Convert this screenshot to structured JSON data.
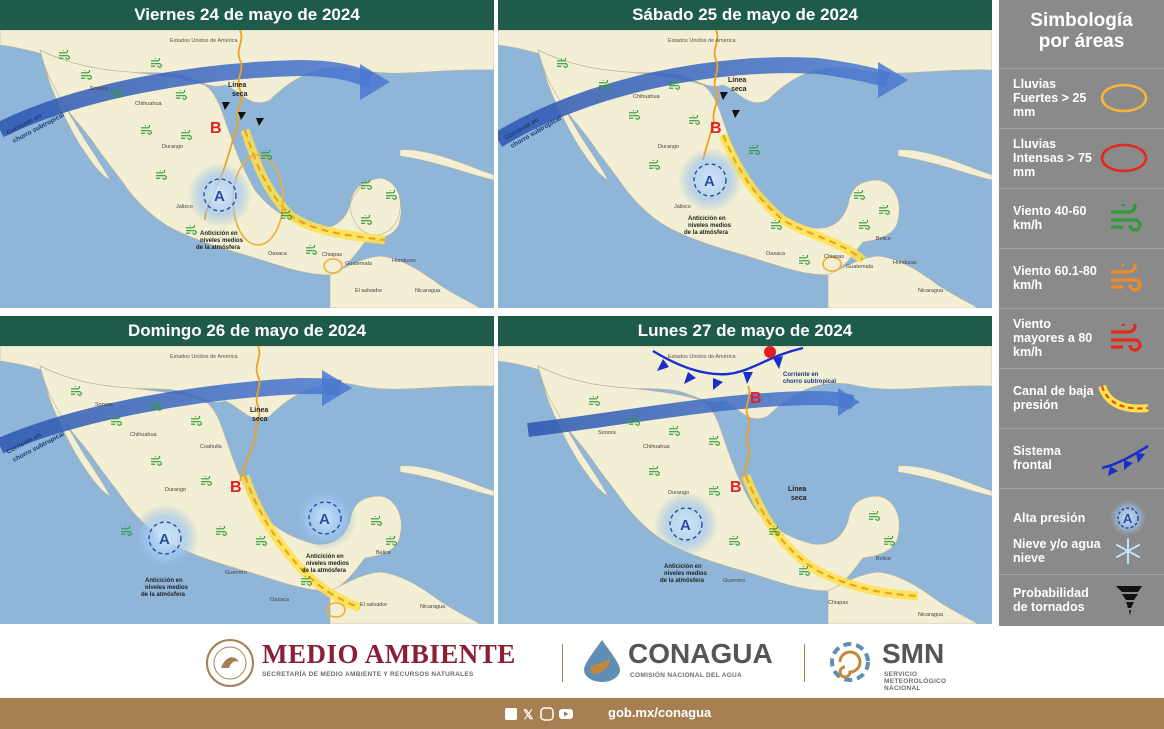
{
  "panels": [
    {
      "title": "Viernes 24 de mayo de 2024"
    },
    {
      "title": "Sábado 25 de mayo de 2024"
    },
    {
      "title": "Domingo 26 de mayo de 2024"
    },
    {
      "title": "Lunes 27 de mayo de 2024"
    }
  ],
  "map_labels": {
    "usa": "Estados Unidos de América",
    "linea_seca_1": "Línea",
    "linea_seca_2": "seca",
    "jet_1": "Corriente en",
    "jet_2": "chorro subtropical",
    "anti_1": "Anticición en",
    "anti_2": "niveles medios",
    "anti_3": "de la atmósfera",
    "sonora": "Sonora",
    "chihuahua": "Chihuahua",
    "coahuila": "Coahuila",
    "durango": "Durango",
    "sinaloa": "Sinaloa",
    "jalisco": "Jalisco",
    "guerrero": "Guerrero",
    "oaxaca": "Oaxaca",
    "chiapas": "Chiapas",
    "veracruz": "Veracruz",
    "yucatan": "Yucatán",
    "belice": "Belice",
    "guatemala": "Guatemala",
    "honduras": "Honduras",
    "elsalvador": "El salvador",
    "nicaragua": "Nicaragua",
    "low": "B",
    "high": "A"
  },
  "legend": {
    "title_1": "Simbología",
    "title_2": "por áreas",
    "items": [
      {
        "label": "Lluvias Fuertes > 25 mm",
        "icon": "orange-ellipse-icon"
      },
      {
        "label": "Lluvias Intensas > 75 mm",
        "icon": "red-ellipse-icon"
      },
      {
        "label": "Viento 40-60 km/h",
        "icon": "green-wind-icon"
      },
      {
        "label": "Viento 60.1-80 km/h",
        "icon": "orange-wind-icon"
      },
      {
        "label": "Viento mayores a 80 km/h",
        "icon": "red-wind-icon"
      },
      {
        "label": "Canal de baja presión",
        "icon": "trough-icon"
      },
      {
        "label": "Sistema frontal",
        "icon": "cold-front-icon"
      },
      {
        "label": "Alta presión",
        "icon": "high-pressure-icon"
      },
      {
        "label": "Nieve y/o agua nieve",
        "icon": "snowflake-icon"
      },
      {
        "label": "Probabilidad de tornados",
        "icon": "tornado-icon"
      }
    ]
  },
  "logos": {
    "medio_ambiente": "MEDIO AMBIENTE",
    "medio_ambiente_sub": "SECRETARÍA DE MEDIO AMBIENTE Y RECURSOS NATURALES",
    "conagua": "CONAGUA",
    "conagua_sub": "COMISIÓN NACIONAL DEL AGUA",
    "smn": "SMN",
    "smn_sub_1": "SERVICIO",
    "smn_sub_2": "METEOROLÓGICO",
    "smn_sub_3": "NACIONAL"
  },
  "footer": {
    "url": "gob.mx/conagua"
  },
  "colors": {
    "header": "#1e5b4a",
    "sea": "#8fb5d8",
    "land": "#f3efd4",
    "legend_bg": "#8a8a8a",
    "footer": "#a67f52",
    "brand_red": "#8a2036"
  }
}
